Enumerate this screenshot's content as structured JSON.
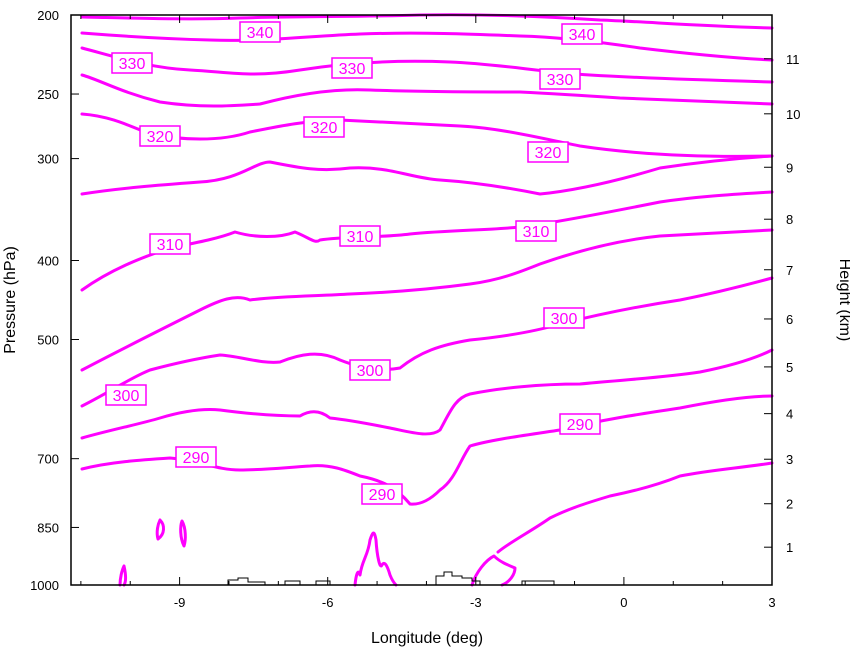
{
  "chart_data": {
    "type": "contour",
    "xlabel": "Longitude (deg)",
    "ylabel_left": "Pressure (hPa)",
    "ylabel_right": "Height (km)",
    "xlim": [
      -11.2,
      3
    ],
    "x_ticks": [
      -9,
      -6,
      -3,
      0,
      3
    ],
    "x_tick_labels": [
      "-9",
      "-6",
      "-3",
      "0",
      "3"
    ],
    "pressure_ticks": [
      200,
      250,
      300,
      400,
      500,
      700,
      850,
      1000
    ],
    "pressure_tick_labels": [
      "200",
      "250",
      "300",
      "400",
      "500",
      "700",
      "850",
      "1000"
    ],
    "height_ticks_km": [
      1,
      2,
      3,
      4,
      5,
      6,
      7,
      8,
      9,
      10,
      11
    ],
    "height_tick_labels": [
      "1",
      "2",
      "3",
      "4",
      "5",
      "6",
      "7",
      "8",
      "9",
      "10",
      "11"
    ],
    "line_color": "#ff00ff",
    "contour_interval_K": 5,
    "contour_labels": [
      {
        "text": "340",
        "lon": -7.8,
        "p": 211
      },
      {
        "text": "340",
        "lon": -1.3,
        "p": 214
      },
      {
        "text": "330",
        "lon": -10.0,
        "p": 238
      },
      {
        "text": "330",
        "lon": -5.8,
        "p": 240
      },
      {
        "text": "330",
        "lon": -1.7,
        "p": 245
      },
      {
        "text": "320",
        "lon": -9.6,
        "p": 284
      },
      {
        "text": "320",
        "lon": -6.3,
        "p": 276
      },
      {
        "text": "320",
        "lon": -1.7,
        "p": 296
      },
      {
        "text": "310",
        "lon": -9.6,
        "p": 382
      },
      {
        "text": "310",
        "lon": -5.5,
        "p": 374
      },
      {
        "text": "310",
        "lon": -2.2,
        "p": 367
      },
      {
        "text": "300",
        "lon": -1.4,
        "p": 478
      },
      {
        "text": "300",
        "lon": -5.4,
        "p": 546
      },
      {
        "text": "300",
        "lon": -10.6,
        "p": 598
      },
      {
        "text": "290",
        "lon": -8.7,
        "p": 711
      },
      {
        "text": "290",
        "lon": -5.1,
        "p": 764
      },
      {
        "text": "290",
        "lon": -0.9,
        "p": 657
      }
    ]
  }
}
